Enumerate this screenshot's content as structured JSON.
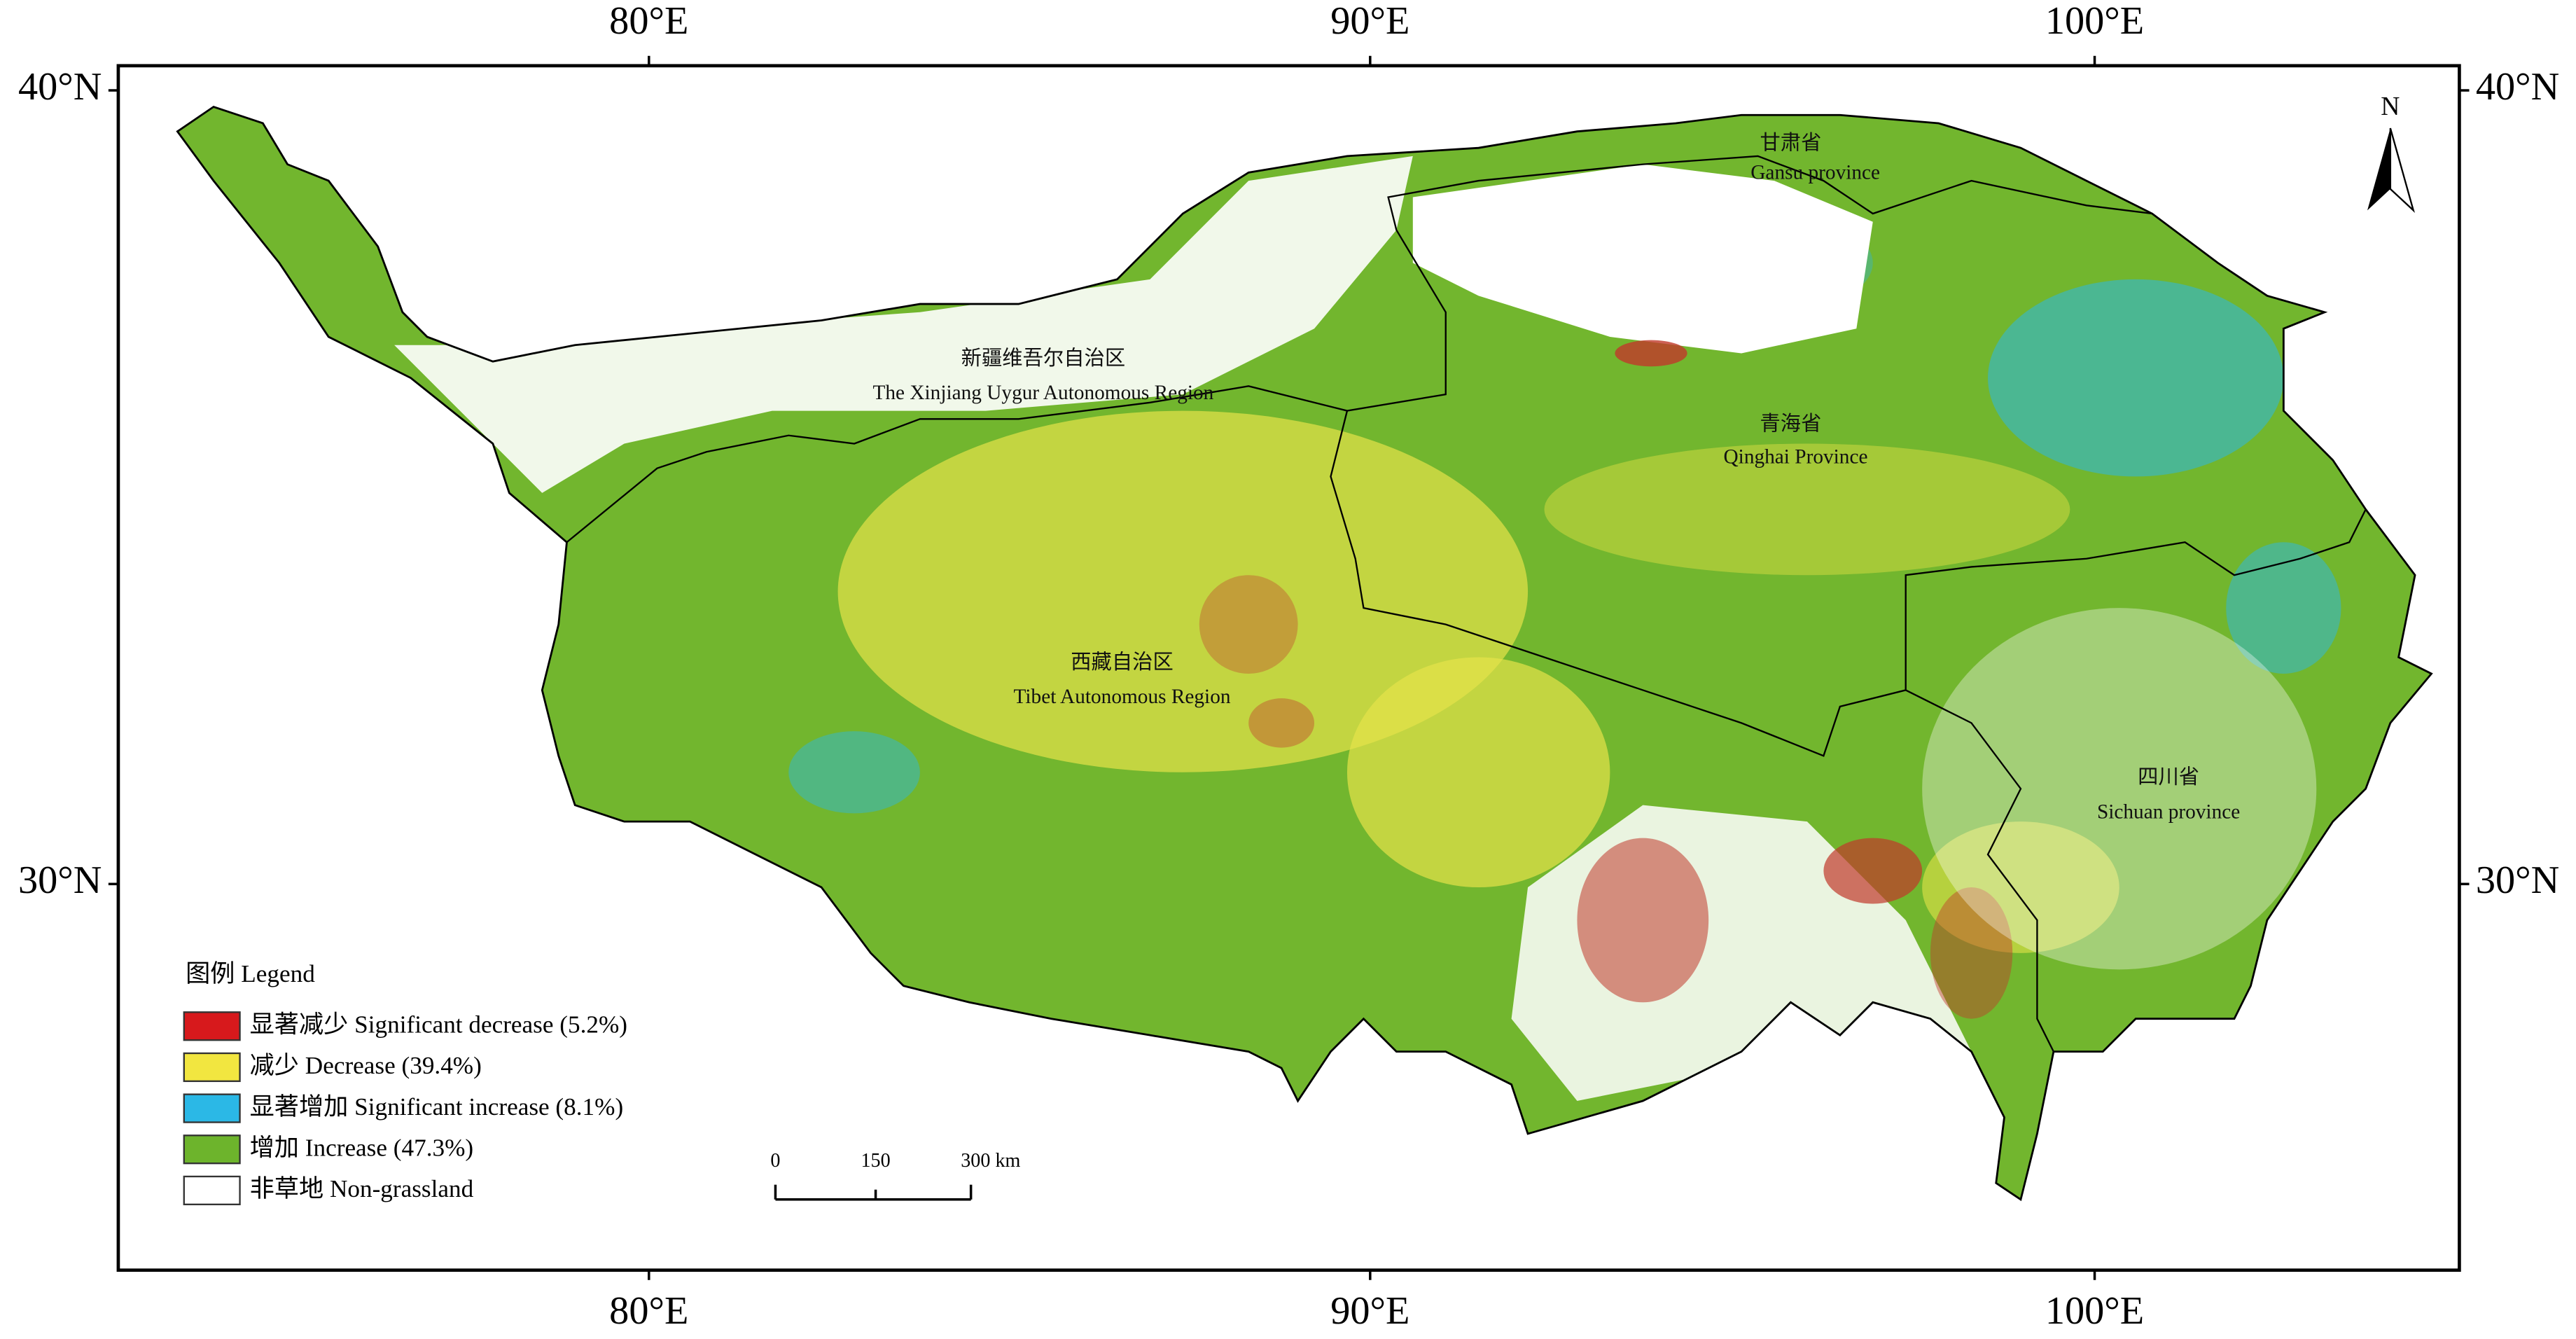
{
  "map": {
    "lon_labels": [
      "80°E",
      "90°E",
      "100°E"
    ],
    "lat_labels": [
      "40°N",
      "30°N"
    ],
    "north": "N",
    "regions": [
      {
        "name_zh": "新疆维吾尔自治区",
        "name_en": "The Xinjiang Uygur Autonomous Region"
      },
      {
        "name_zh": "甘肃省",
        "name_en": "Gansu province"
      },
      {
        "name_zh": "青海省",
        "name_en": "Qinghai Province"
      },
      {
        "name_zh": "西藏自治区",
        "name_en": "Tibet Autonomous Region"
      },
      {
        "name_zh": "四川省",
        "name_en": "Sichuan province"
      }
    ],
    "legend": {
      "title": "图例 Legend",
      "items": [
        {
          "label": "显著减少 Significant decrease (5.2%)",
          "color": "#d7191c"
        },
        {
          "label": "减少 Decrease (39.4%)",
          "color": "#f2e640"
        },
        {
          "label": "显著增加 Significant increase (8.1%)",
          "color": "#2bb8e6"
        },
        {
          "label": "增加 Increase (47.3%)",
          "color": "#6db42c"
        },
        {
          "label": "非草地 Non-grassland",
          "color": "#ffffff"
        }
      ]
    },
    "scale_bar": [
      "0",
      "150",
      "300 km"
    ]
  }
}
